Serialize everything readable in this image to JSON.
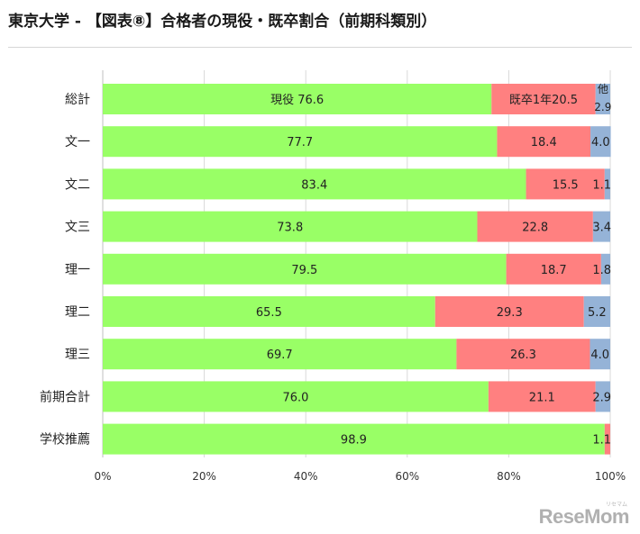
{
  "page": {
    "title": "東京大学 - 【図表⑧】合格者の現役・既卒割合（前期科類別）"
  },
  "chart_data": {
    "type": "bar",
    "orientation": "horizontal",
    "stacked": true,
    "title": "",
    "xlabel": "",
    "ylabel": "",
    "xlim": [
      0,
      100
    ],
    "x_ticks": [
      "0%",
      "20%",
      "40%",
      "60%",
      "80%",
      "100%"
    ],
    "grid": true,
    "categories": [
      "総計",
      "文一",
      "文二",
      "文三",
      "理一",
      "理二",
      "理三",
      "前期合計",
      "学校推薦"
    ],
    "series": [
      {
        "color": "#99ff66",
        "values": [
          76.6,
          77.7,
          83.4,
          73.8,
          79.5,
          65.5,
          69.7,
          76.0,
          98.9
        ],
        "labels": [
          "現役 76.6",
          "77.7",
          "83.4",
          "73.8",
          "79.5",
          "65.5",
          "69.7",
          "76.0",
          "98.9"
        ]
      },
      {
        "color": "#ff8080",
        "values": [
          20.5,
          18.4,
          15.5,
          22.8,
          18.7,
          29.3,
          26.3,
          21.1,
          1.1
        ],
        "labels": [
          "既卒1年20.5",
          "18.4",
          "15.5",
          "22.8",
          "18.7",
          "29.3",
          "26.3",
          "21.1",
          "1.1"
        ]
      },
      {
        "color": "#95b3d7",
        "values": [
          2.9,
          4.0,
          1.1,
          3.4,
          1.8,
          5.2,
          4.0,
          2.9,
          0.0
        ],
        "labels": [
          "他 2.9",
          "4.0",
          "1.1",
          "3.4",
          "1.8",
          "5.2",
          "4.0",
          "2.9",
          ""
        ]
      }
    ]
  },
  "watermark": {
    "text": "ReseMom",
    "ruby": "リセマム"
  }
}
